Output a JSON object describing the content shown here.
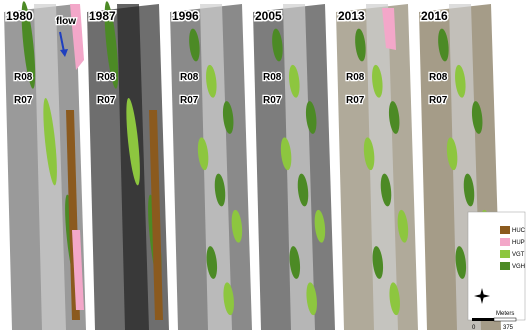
{
  "panels": [
    {
      "year": "1980",
      "labels": [
        "R08",
        "R07"
      ]
    },
    {
      "year": "1987",
      "labels": [
        "R08",
        "R07"
      ]
    },
    {
      "year": "1996",
      "labels": [
        "R08",
        "R07"
      ]
    },
    {
      "year": "2005",
      "labels": [
        "R08",
        "R07"
      ]
    },
    {
      "year": "2013",
      "labels": [
        "R08",
        "R07"
      ]
    },
    {
      "year": "2016",
      "labels": [
        "R08",
        "R07"
      ]
    }
  ],
  "flow_label": "flow",
  "legend": {
    "items": [
      {
        "label": "HUC",
        "color": "#8b5a1e"
      },
      {
        "label": "HUP",
        "color": "#f3a7c9"
      },
      {
        "label": "VGT",
        "color": "#8dc63f"
      },
      {
        "label": "VGH",
        "color": "#4c8a25"
      }
    ]
  },
  "scale": {
    "ticks": [
      "0",
      "375"
    ],
    "unit": "Meters"
  }
}
